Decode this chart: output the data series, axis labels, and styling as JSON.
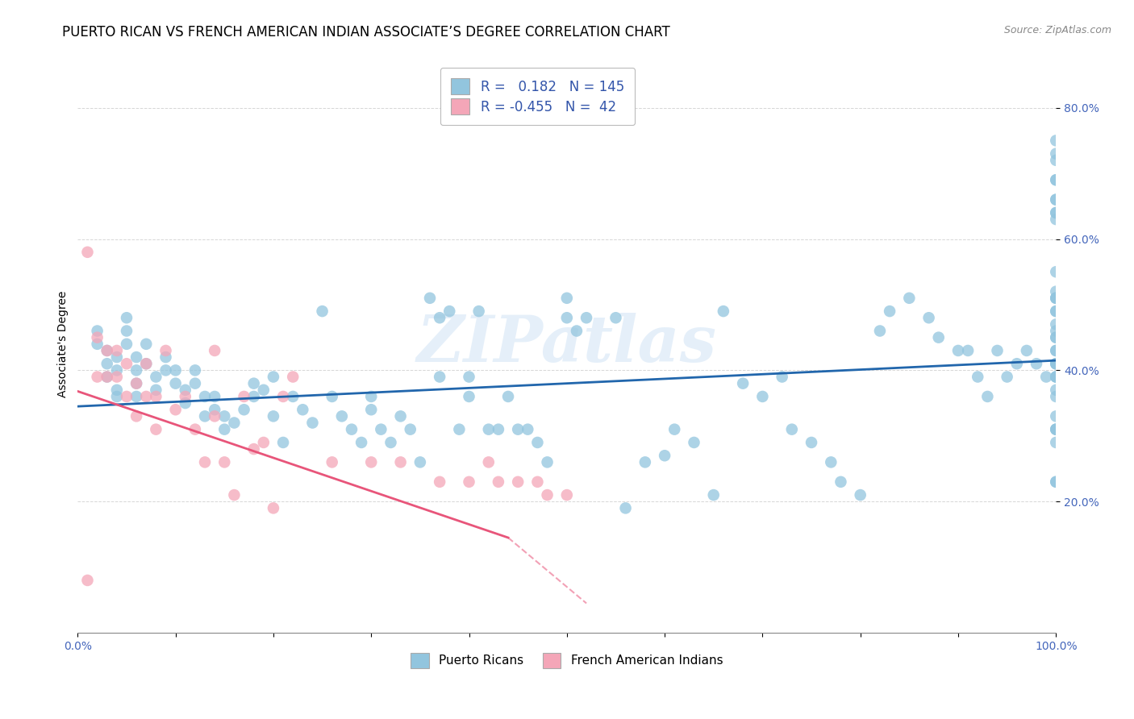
{
  "title": "PUERTO RICAN VS FRENCH AMERICAN INDIAN ASSOCIATE’S DEGREE CORRELATION CHART",
  "source": "Source: ZipAtlas.com",
  "ylabel": "Associate's Degree",
  "ytick_labels": [
    "20.0%",
    "40.0%",
    "60.0%",
    "80.0%"
  ],
  "ytick_values": [
    0.2,
    0.4,
    0.6,
    0.8
  ],
  "xlim": [
    0.0,
    1.0
  ],
  "ylim": [
    0.0,
    0.88
  ],
  "blue_r": 0.182,
  "blue_n": 145,
  "pink_r": -0.455,
  "pink_n": 42,
  "blue_color": "#92c5de",
  "pink_color": "#f4a6b8",
  "blue_line_color": "#2166ac",
  "pink_line_color": "#e8557a",
  "watermark": "ZIPatlas",
  "legend_label_blue": "Puerto Ricans",
  "legend_label_pink": "French American Indians",
  "blue_scatter_x": [
    0.02,
    0.02,
    0.03,
    0.03,
    0.03,
    0.04,
    0.04,
    0.04,
    0.04,
    0.05,
    0.05,
    0.05,
    0.06,
    0.06,
    0.06,
    0.06,
    0.07,
    0.07,
    0.08,
    0.08,
    0.09,
    0.09,
    0.1,
    0.1,
    0.11,
    0.11,
    0.12,
    0.12,
    0.13,
    0.13,
    0.14,
    0.14,
    0.15,
    0.15,
    0.16,
    0.17,
    0.18,
    0.18,
    0.19,
    0.2,
    0.2,
    0.21,
    0.22,
    0.23,
    0.24,
    0.25,
    0.26,
    0.27,
    0.28,
    0.29,
    0.3,
    0.3,
    0.31,
    0.32,
    0.33,
    0.34,
    0.35,
    0.36,
    0.37,
    0.37,
    0.38,
    0.39,
    0.4,
    0.4,
    0.41,
    0.42,
    0.43,
    0.44,
    0.45,
    0.46,
    0.47,
    0.48,
    0.5,
    0.5,
    0.51,
    0.52,
    0.55,
    0.56,
    0.58,
    0.6,
    0.61,
    0.63,
    0.65,
    0.66,
    0.68,
    0.7,
    0.72,
    0.73,
    0.75,
    0.77,
    0.78,
    0.8,
    0.82,
    0.83,
    0.85,
    0.87,
    0.88,
    0.9,
    0.91,
    0.92,
    0.93,
    0.94,
    0.95,
    0.96,
    0.97,
    0.98,
    0.99,
    1.0,
    1.0,
    1.0,
    1.0,
    1.0,
    1.0,
    1.0,
    1.0,
    1.0,
    1.0,
    1.0,
    1.0,
    1.0,
    1.0,
    1.0,
    1.0,
    1.0,
    1.0,
    1.0,
    1.0,
    1.0,
    1.0,
    1.0,
    1.0,
    1.0,
    1.0,
    1.0,
    1.0,
    1.0,
    1.0,
    1.0,
    1.0,
    1.0,
    1.0,
    1.0,
    1.0,
    1.0,
    1.0
  ],
  "blue_scatter_y": [
    0.44,
    0.46,
    0.39,
    0.41,
    0.43,
    0.36,
    0.37,
    0.4,
    0.42,
    0.44,
    0.46,
    0.48,
    0.36,
    0.38,
    0.4,
    0.42,
    0.41,
    0.44,
    0.37,
    0.39,
    0.4,
    0.42,
    0.38,
    0.4,
    0.35,
    0.37,
    0.38,
    0.4,
    0.33,
    0.36,
    0.34,
    0.36,
    0.31,
    0.33,
    0.32,
    0.34,
    0.36,
    0.38,
    0.37,
    0.39,
    0.33,
    0.29,
    0.36,
    0.34,
    0.32,
    0.49,
    0.36,
    0.33,
    0.31,
    0.29,
    0.36,
    0.34,
    0.31,
    0.29,
    0.33,
    0.31,
    0.26,
    0.51,
    0.48,
    0.39,
    0.49,
    0.31,
    0.39,
    0.36,
    0.49,
    0.31,
    0.31,
    0.36,
    0.31,
    0.31,
    0.29,
    0.26,
    0.48,
    0.51,
    0.46,
    0.48,
    0.48,
    0.19,
    0.26,
    0.27,
    0.31,
    0.29,
    0.21,
    0.49,
    0.38,
    0.36,
    0.39,
    0.31,
    0.29,
    0.26,
    0.23,
    0.21,
    0.46,
    0.49,
    0.51,
    0.48,
    0.45,
    0.43,
    0.43,
    0.39,
    0.36,
    0.43,
    0.39,
    0.41,
    0.43,
    0.41,
    0.39,
    0.43,
    0.46,
    0.29,
    0.23,
    0.31,
    0.31,
    0.33,
    0.63,
    0.66,
    0.66,
    0.64,
    0.64,
    0.51,
    0.51,
    0.49,
    0.47,
    0.45,
    0.45,
    0.43,
    0.41,
    0.39,
    0.39,
    0.36,
    0.31,
    0.23,
    0.41,
    0.41,
    0.39,
    0.37,
    0.72,
    0.75,
    0.73,
    0.69,
    0.69,
    0.52,
    0.51,
    0.49,
    0.55
  ],
  "pink_scatter_x": [
    0.01,
    0.01,
    0.02,
    0.02,
    0.03,
    0.03,
    0.04,
    0.04,
    0.05,
    0.05,
    0.06,
    0.06,
    0.07,
    0.07,
    0.08,
    0.08,
    0.09,
    0.1,
    0.11,
    0.12,
    0.13,
    0.14,
    0.14,
    0.15,
    0.16,
    0.17,
    0.18,
    0.19,
    0.2,
    0.21,
    0.22,
    0.26,
    0.3,
    0.33,
    0.37,
    0.4,
    0.42,
    0.43,
    0.45,
    0.47,
    0.48,
    0.5
  ],
  "pink_scatter_y": [
    0.58,
    0.08,
    0.39,
    0.45,
    0.39,
    0.43,
    0.39,
    0.43,
    0.36,
    0.41,
    0.38,
    0.33,
    0.36,
    0.41,
    0.31,
    0.36,
    0.43,
    0.34,
    0.36,
    0.31,
    0.26,
    0.33,
    0.43,
    0.26,
    0.21,
    0.36,
    0.28,
    0.29,
    0.19,
    0.36,
    0.39,
    0.26,
    0.26,
    0.26,
    0.23,
    0.23,
    0.26,
    0.23,
    0.23,
    0.23,
    0.21,
    0.21
  ],
  "blue_trend_x_start": 0.0,
  "blue_trend_x_end": 1.0,
  "blue_trend_y_start": 0.345,
  "blue_trend_y_end": 0.415,
  "pink_trend_solid_x_start": 0.0,
  "pink_trend_solid_x_end": 0.44,
  "pink_trend_solid_y_start": 0.368,
  "pink_trend_solid_y_end": 0.145,
  "pink_trend_dash_x_start": 0.44,
  "pink_trend_dash_x_end": 0.52,
  "pink_trend_dash_y_start": 0.145,
  "pink_trend_dash_y_end": 0.045,
  "background_color": "#ffffff",
  "grid_color": "#cccccc",
  "title_fontsize": 12,
  "label_fontsize": 10,
  "tick_fontsize": 10
}
